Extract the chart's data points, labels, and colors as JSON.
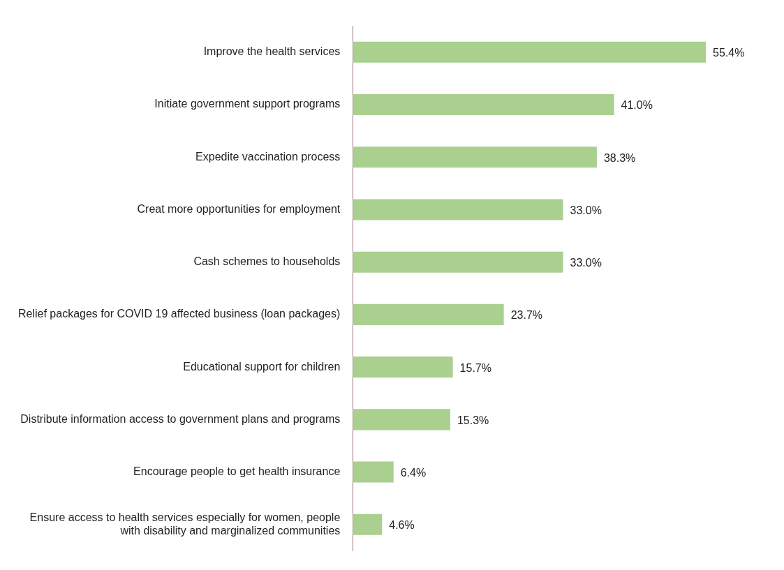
{
  "chart_data": {
    "type": "bar",
    "orientation": "horizontal",
    "categories": [
      "Improve the health services",
      "Initiate government support programs",
      "Expedite vaccination process",
      "Creat more opportunities for employment",
      "Cash schemes to households",
      "Relief packages for COVID 19 affected business (loan packages)",
      "Educational support for children",
      "Distribute information access to government plans and programs",
      "Encourage people to get health insurance",
      "Ensure access to health services especially for women, people with disability and marginalized communities"
    ],
    "values": [
      55.4,
      41.0,
      38.3,
      33.0,
      33.0,
      23.7,
      15.7,
      15.3,
      6.4,
      4.6
    ],
    "value_labels": [
      "55.4%",
      "41.0%",
      "38.3%",
      "33.0%",
      "33.0%",
      "23.7%",
      "15.7%",
      "15.3%",
      "6.4%",
      "4.6%"
    ],
    "color": "#a9d08e"
  }
}
